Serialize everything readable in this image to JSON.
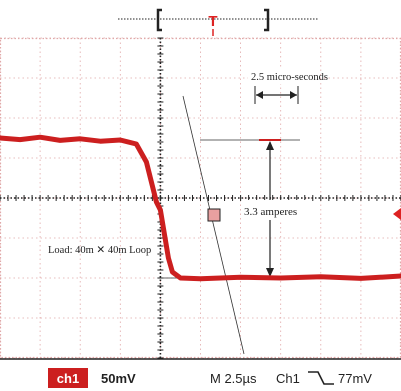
{
  "colors": {
    "trace": "#cc1f1f",
    "grid": "#e0a8a8",
    "annotation": "#222222",
    "ch1_badge": "#cc1f1f",
    "trigger_marker": "#dd2222"
  },
  "top_marker": {
    "label": "T"
  },
  "annotations": {
    "time_interval": "2.5 micro-seconds",
    "current_step": "3.3 amperes",
    "load": "Load: 40m ✕ 40m Loop"
  },
  "status_bar": {
    "channel": "ch1",
    "volts_per_div": "50mV",
    "timebase": "M 2.5µs",
    "trigger_channel": "Ch1",
    "trigger_slope_icon": "falling-edge-icon",
    "trigger_level": "77mV"
  },
  "chart_data": {
    "type": "line",
    "title": "",
    "xlabel": "",
    "ylabel": "",
    "grid": true,
    "x_divisions": 10,
    "y_divisions": 8,
    "xlim": [
      -4,
      6
    ],
    "ylim": [
      -4,
      4
    ],
    "series": [
      {
        "values_unit": "divisions",
        "x": [
          -4.0,
          -3.5,
          -3.0,
          -2.5,
          -2.0,
          -1.5,
          -1.0,
          -0.6,
          -0.35,
          -0.2,
          -0.1,
          0.0,
          0.1,
          0.2,
          0.3,
          0.5,
          1.0,
          2.0,
          3.0,
          4.0,
          5.0,
          6.0
        ],
        "y": [
          1.5,
          1.46,
          1.52,
          1.44,
          1.48,
          1.42,
          1.45,
          1.35,
          0.9,
          0.3,
          -0.1,
          -0.3,
          -0.9,
          -1.5,
          -1.85,
          -2.0,
          -2.02,
          -1.98,
          -2.0,
          -1.97,
          -2.01,
          -1.95
        ]
      }
    ]
  }
}
